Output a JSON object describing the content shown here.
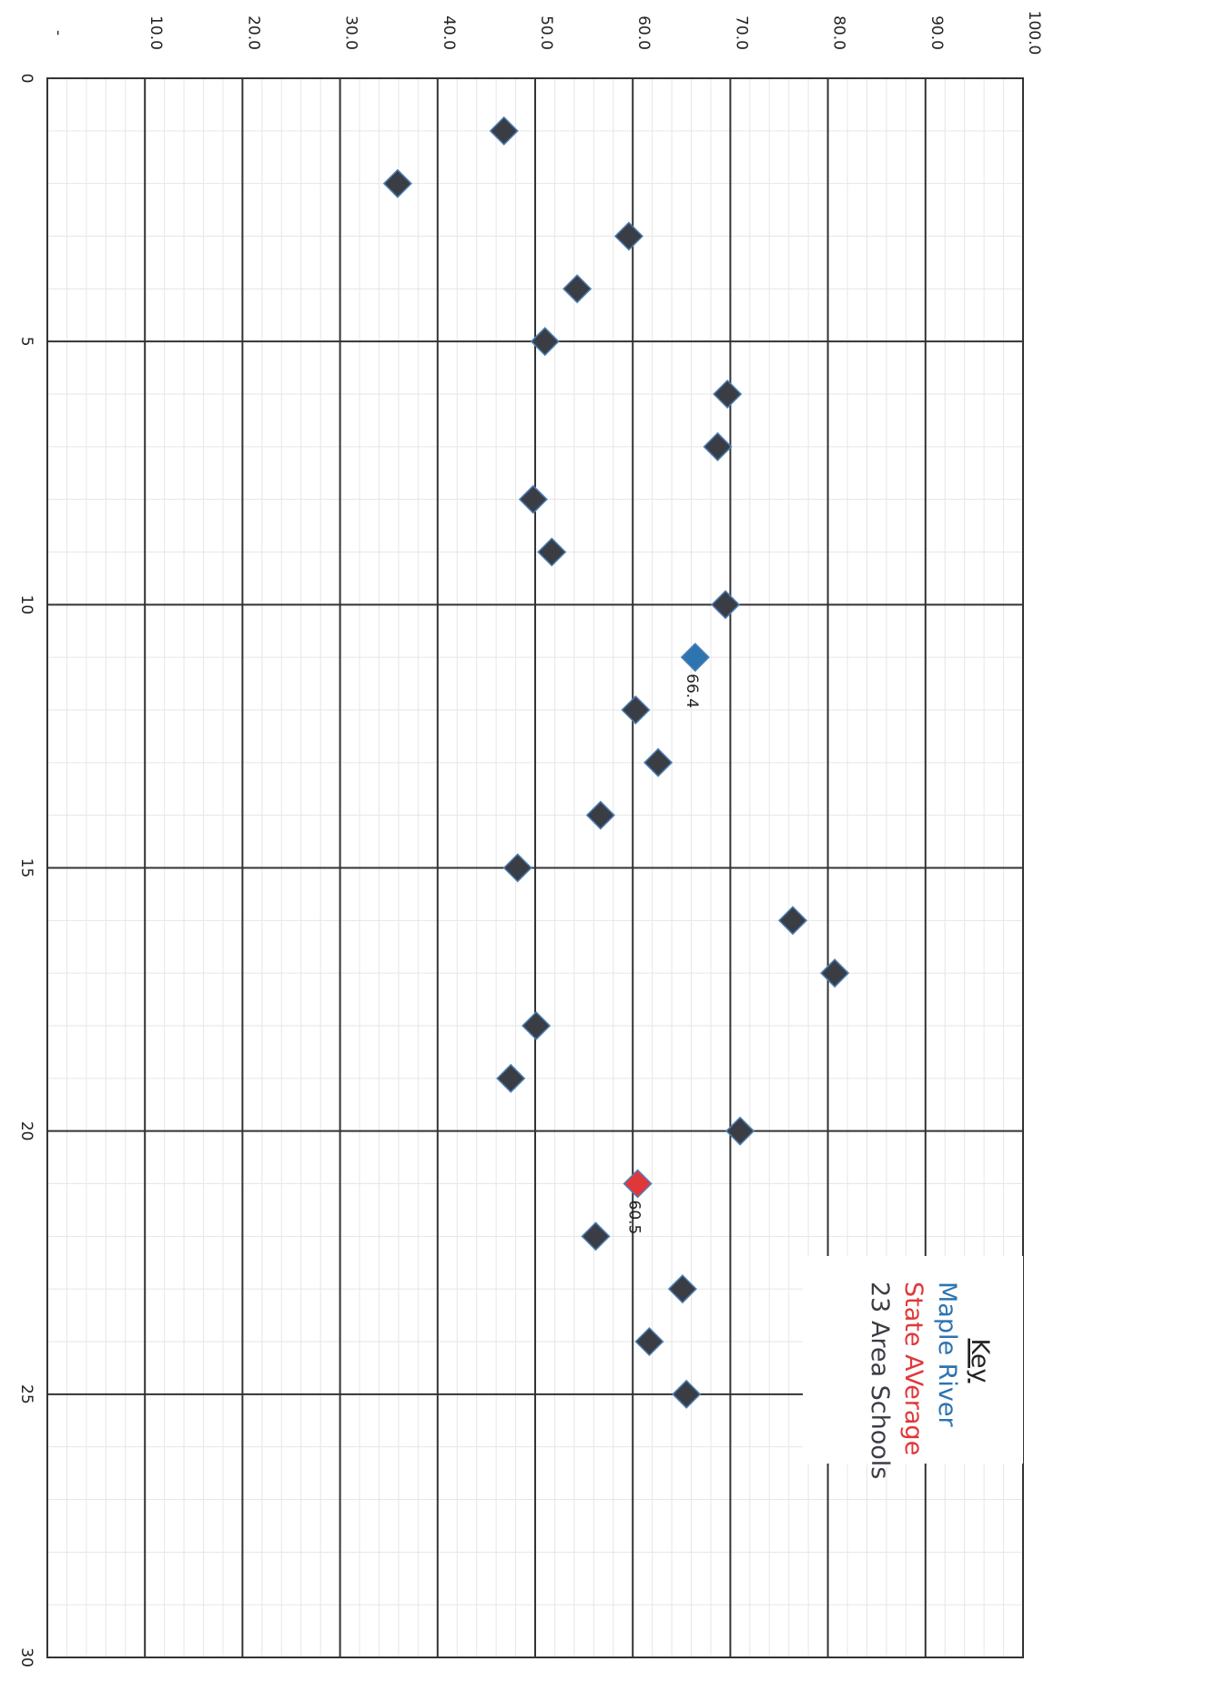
{
  "chart_data": {
    "type": "scatter",
    "title": "",
    "xlabel": "",
    "ylabel": "",
    "x_range": [
      0,
      30
    ],
    "y_range": [
      0,
      100
    ],
    "x_ticks": [
      "0",
      "5",
      "10",
      "15",
      "20",
      "25",
      "30"
    ],
    "y_ticks": [
      "-",
      "10.0",
      "20.0",
      "30.0",
      "40.0",
      "50.0",
      "60.0",
      "70.0",
      "80.0",
      "90.0",
      "100.0"
    ],
    "grid": true,
    "orientation": "rotated-90-clockwise",
    "legend": {
      "title": "Key",
      "placement": "bottom-right",
      "entries": [
        {
          "label": "Maple River",
          "color": "#2d74b0"
        },
        {
          "label": "State AVerage",
          "color": "#e0383a"
        },
        {
          "label": "23 Area Schools",
          "color": "#3a3d44"
        }
      ]
    },
    "series": [
      {
        "name": "23 Area Schools",
        "color": "#3a3d44",
        "points": [
          {
            "x": 1,
            "y": 46.8
          },
          {
            "x": 2,
            "y": 35.9
          },
          {
            "x": 3,
            "y": 59.6
          },
          {
            "x": 4,
            "y": 54.3
          },
          {
            "x": 5,
            "y": 51.0
          },
          {
            "x": 6,
            "y": 69.7
          },
          {
            "x": 7,
            "y": 68.7
          },
          {
            "x": 8,
            "y": 49.8
          },
          {
            "x": 9,
            "y": 51.7
          },
          {
            "x": 10,
            "y": 69.5
          },
          {
            "x": 12,
            "y": 60.3
          },
          {
            "x": 13,
            "y": 62.6
          },
          {
            "x": 14,
            "y": 56.7
          },
          {
            "x": 15,
            "y": 48.2
          },
          {
            "x": 16,
            "y": 76.4
          },
          {
            "x": 17,
            "y": 80.7
          },
          {
            "x": 18,
            "y": 50.1
          },
          {
            "x": 19,
            "y": 47.5
          },
          {
            "x": 20,
            "y": 71.0
          },
          {
            "x": 22,
            "y": 56.2
          },
          {
            "x": 23,
            "y": 65.1
          },
          {
            "x": 24,
            "y": 61.7
          },
          {
            "x": 25,
            "y": 65.5
          }
        ]
      },
      {
        "name": "Maple River",
        "color": "#2d74b0",
        "points": [
          {
            "x": 11,
            "y": 66.4,
            "label": "66.4"
          }
        ]
      },
      {
        "name": "State AVerage",
        "color": "#e0383a",
        "points": [
          {
            "x": 21,
            "y": 60.5,
            "label": "60.5"
          }
        ]
      }
    ]
  }
}
